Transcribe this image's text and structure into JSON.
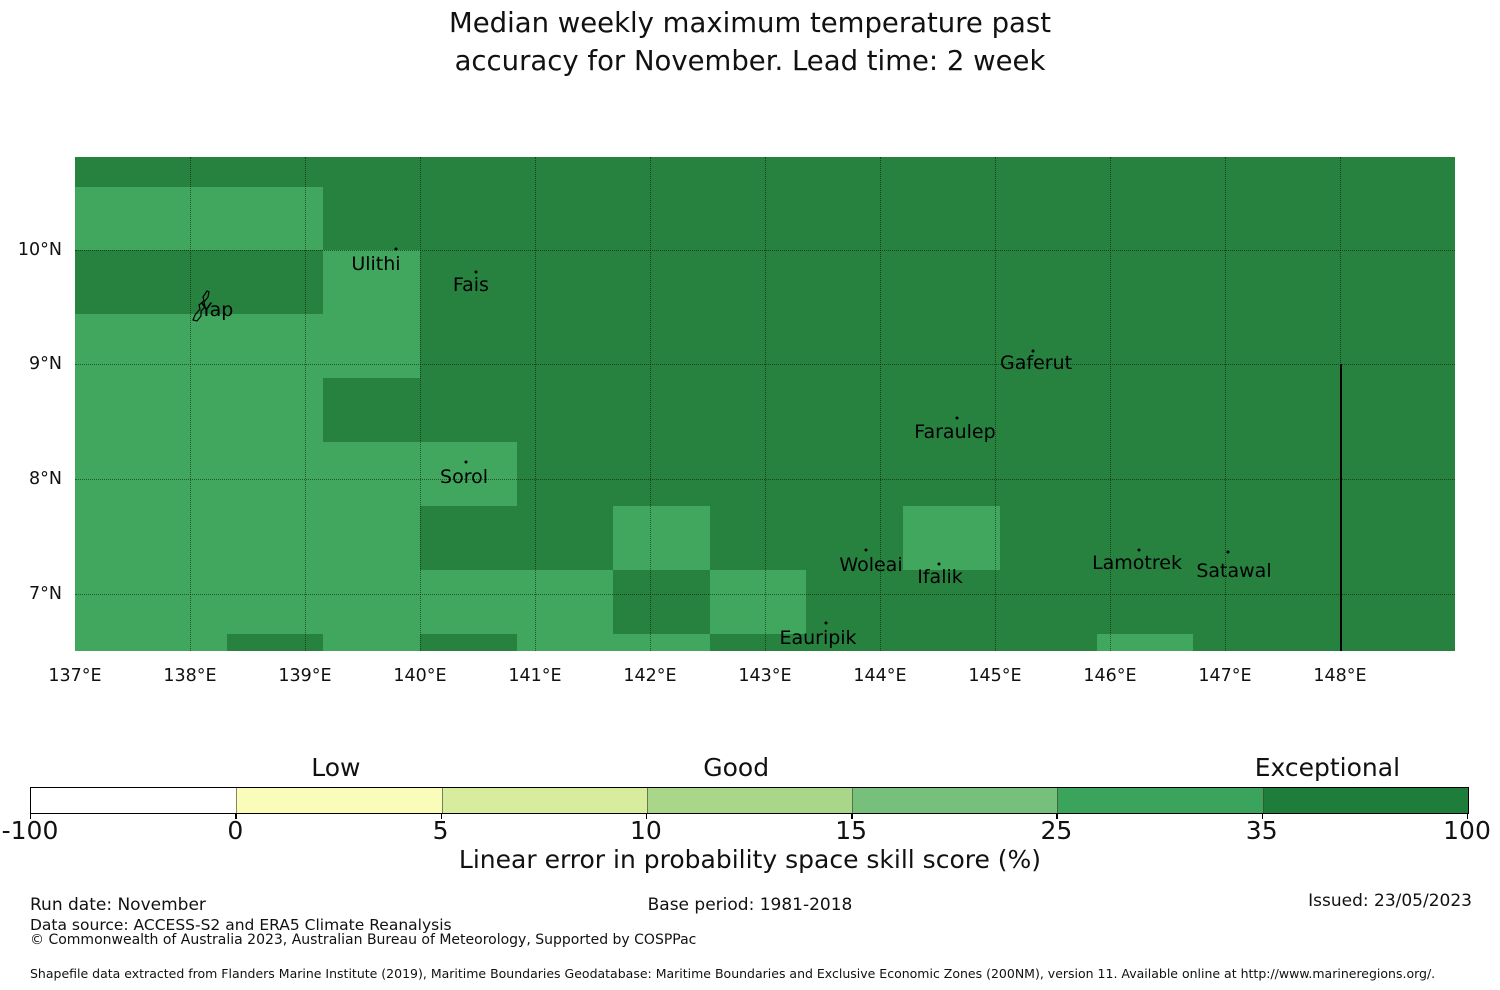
{
  "title": {
    "line1": "Median weekly maximum temperature past",
    "line2": "accuracy for November. Lead time: 2 week"
  },
  "chart_data": {
    "type": "heatmap",
    "title": "Median weekly maximum temperature past accuracy for November. Lead time: 2 week",
    "map": {
      "lon_min": 137.0,
      "lon_max": 149.0,
      "lat_min": 6.5,
      "lat_max": 10.81,
      "xticks": [
        {
          "lon": 137,
          "label": "137°E"
        },
        {
          "lon": 138,
          "label": "138°E"
        },
        {
          "lon": 139,
          "label": "139°E"
        },
        {
          "lon": 140,
          "label": "140°E"
        },
        {
          "lon": 141,
          "label": "141°E"
        },
        {
          "lon": 142,
          "label": "142°E"
        },
        {
          "lon": 143,
          "label": "143°E"
        },
        {
          "lon": 144,
          "label": "144°E"
        },
        {
          "lon": 145,
          "label": "145°E"
        },
        {
          "lon": 146,
          "label": "146°E"
        },
        {
          "lon": 147,
          "label": "147°E"
        },
        {
          "lon": 148,
          "label": "148°E"
        }
      ],
      "yticks": [
        {
          "lat": 10,
          "label": "10°N"
        },
        {
          "lat": 9,
          "label": "9°N"
        },
        {
          "lat": 8,
          "label": "8°N"
        },
        {
          "lat": 7,
          "label": "7°N"
        }
      ],
      "gridline_lons": [
        138,
        139,
        140,
        141,
        142,
        143,
        144,
        145,
        146,
        147,
        148
      ],
      "gridline_lats": [
        7,
        8,
        9,
        10
      ],
      "base_skill_bin": "35 to 100",
      "base_color": "#27813F",
      "mid_skill_bin": "25 to 35",
      "mid_color": "#41A75F",
      "mid_cells": [
        {
          "lon0": 137.0,
          "lat0": 10.0,
          "lon1": 139.157,
          "lat1": 10.55
        },
        {
          "lon0": 139.157,
          "lat0": 8.882,
          "lon1": 140.0,
          "lat1": 10.0
        },
        {
          "lon0": 137.0,
          "lat0": 8.882,
          "lon1": 139.157,
          "lat1": 9.441
        },
        {
          "lon0": 137.0,
          "lat0": 8.323,
          "lon1": 139.157,
          "lat1": 8.882
        },
        {
          "lon0": 137.0,
          "lat0": 7.764,
          "lon1": 140.843,
          "lat1": 8.323
        },
        {
          "lon0": 137.0,
          "lat0": 7.205,
          "lon1": 140.0,
          "lat1": 7.764
        },
        {
          "lon0": 141.678,
          "lat0": 7.205,
          "lon1": 142.522,
          "lat1": 7.764
        },
        {
          "lon0": 144.2,
          "lat0": 7.205,
          "lon1": 145.043,
          "lat1": 7.764
        },
        {
          "lon0": 137.0,
          "lat0": 6.646,
          "lon1": 141.678,
          "lat1": 7.205
        },
        {
          "lon0": 142.522,
          "lat0": 6.646,
          "lon1": 143.357,
          "lat1": 7.205
        },
        {
          "lon0": 137.0,
          "lat0": 6.497,
          "lon1": 138.322,
          "lat1": 6.646
        },
        {
          "lon0": 139.157,
          "lat0": 6.497,
          "lon1": 140.0,
          "lat1": 6.646
        },
        {
          "lon0": 140.843,
          "lat0": 6.497,
          "lon1": 142.522,
          "lat1": 6.646
        },
        {
          "lon0": 145.887,
          "lat0": 6.497,
          "lon1": 146.722,
          "lat1": 6.646
        }
      ],
      "islands": [
        {
          "name": "Yap",
          "lon": 138.235,
          "lat": 9.476,
          "outline": true
        },
        {
          "name": "Ulithi",
          "lon": 139.617,
          "lat": 9.878,
          "marker_lon": 139.791,
          "marker_lat": 10.01
        },
        {
          "name": "Fais",
          "lon": 140.443,
          "lat": 9.694,
          "marker_lon": 140.487,
          "marker_lat": 9.81
        },
        {
          "name": "Sorol",
          "lon": 140.383,
          "lat": 8.017,
          "marker_lon": 140.4,
          "marker_lat": 8.15
        },
        {
          "name": "Gaferut",
          "lon": 145.357,
          "lat": 9.013,
          "marker_lon": 145.33,
          "marker_lat": 9.12
        },
        {
          "name": "Faraulep",
          "lon": 144.652,
          "lat": 8.41,
          "marker_lon": 144.67,
          "marker_lat": 8.53
        },
        {
          "name": "Woleai",
          "lon": 143.922,
          "lat": 7.249,
          "marker_lon": 143.88,
          "marker_lat": 7.38
        },
        {
          "name": "Ifalik",
          "lon": 144.522,
          "lat": 7.144,
          "marker_lon": 144.51,
          "marker_lat": 7.26
        },
        {
          "name": "Eauripik",
          "lon": 143.461,
          "lat": 6.611,
          "marker_lon": 143.53,
          "marker_lat": 6.74
        },
        {
          "name": "Lamotrek",
          "lon": 146.235,
          "lat": 7.266,
          "marker_lon": 146.25,
          "marker_lat": 7.38
        },
        {
          "name": "Satawal",
          "lon": 147.078,
          "lat": 7.196,
          "marker_lon": 147.03,
          "marker_lat": 7.36
        }
      ],
      "eez_line": {
        "lon": 148.0,
        "lat_top": 9.0,
        "lat_bottom": 6.5
      }
    },
    "colorbar": {
      "segments": [
        {
          "from": "-100",
          "to": "0",
          "color": "#FFFFFF"
        },
        {
          "from": "0",
          "to": "5",
          "color": "#FAFCBA"
        },
        {
          "from": "5",
          "to": "10",
          "color": "#D8EC9E"
        },
        {
          "from": "10",
          "to": "15",
          "color": "#AAD68A"
        },
        {
          "from": "15",
          "to": "25",
          "color": "#76C07C"
        },
        {
          "from": "25",
          "to": "35",
          "color": "#3BA45C"
        },
        {
          "from": "35",
          "to": "100",
          "color": "#1E7D3B"
        }
      ],
      "tick_labels": [
        "-100",
        "0",
        "5",
        "10",
        "15",
        "25",
        "35",
        "100"
      ],
      "zone_labels": [
        {
          "text": "Low",
          "center_boundary_units": 1.49
        },
        {
          "text": "Good",
          "center_boundary_units": 3.44
        },
        {
          "text": "Exceptional",
          "center_boundary_units": 6.32
        }
      ],
      "axis_label": "Linear error in probability space skill score (%)"
    }
  },
  "footer": {
    "run_date": "Run date: November",
    "base_period": "Base period: 1981-2018",
    "issued": "Issued: 23/05/2023",
    "data_source": "Data source: ACCESS-S2 and ERA5 Climate Reanalysis",
    "copyright": "© Commonwealth of Australia 2023, Australian Bureau of Meteorology, Supported by COSPPac",
    "shapefile_note": "Shapefile data extracted from Flanders Marine Institute (2019), Maritime Boundaries Geodatabase: Maritime Boundaries and Exclusive Economic Zones (200NM), version 11. Available online at http://www.marineregions.org/."
  }
}
